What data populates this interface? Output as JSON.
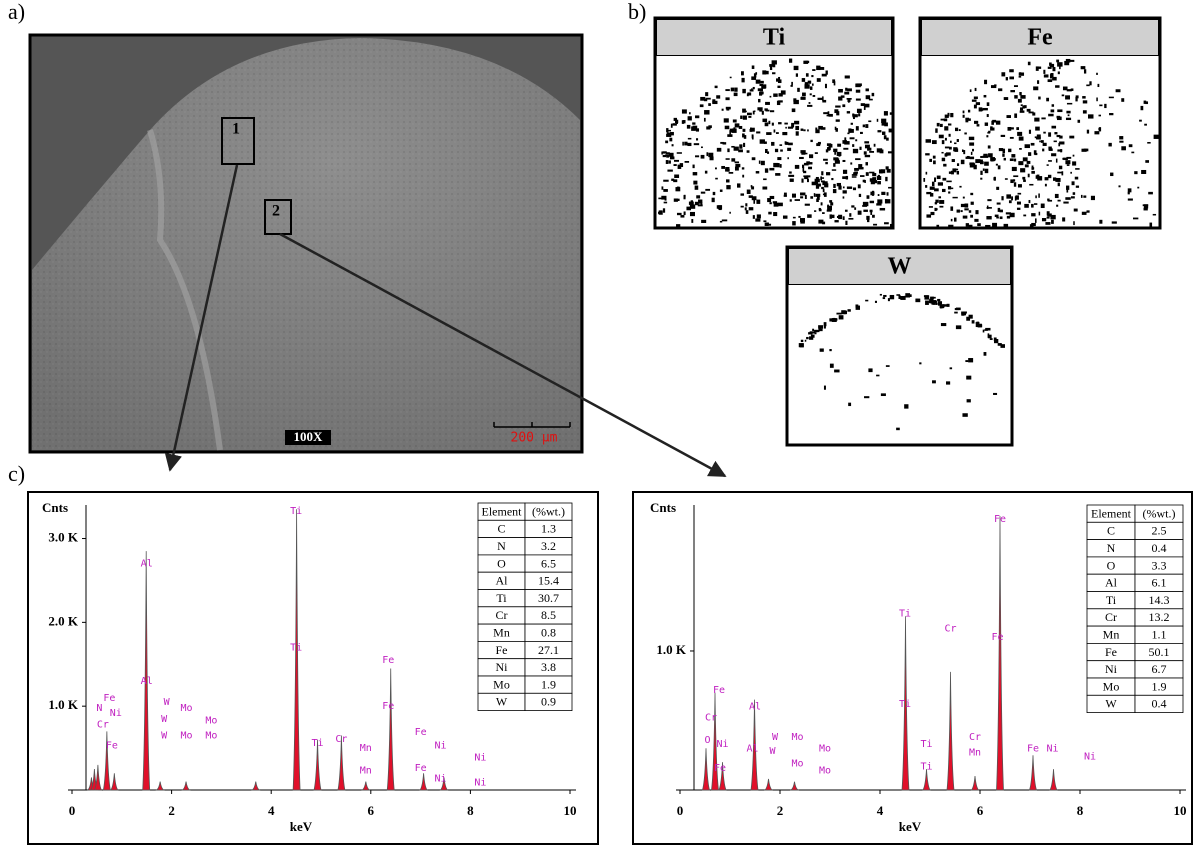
{
  "panels": {
    "a": "a)",
    "b": "b)",
    "c": "c)"
  },
  "sem": {
    "regions": [
      "1",
      "2"
    ],
    "magnification": "100X",
    "scale_bar": "200 µm"
  },
  "maps": [
    "Ti",
    "Fe",
    "W"
  ],
  "chart_data": [
    {
      "type": "spectrum",
      "y_label": "Cnts",
      "x_label": "keV",
      "color": "#e0102a",
      "xlim": [
        0,
        10
      ],
      "xticks": [
        0,
        2,
        4,
        6,
        8,
        10
      ],
      "ylim": [
        0,
        3400
      ],
      "yticks": [
        {
          "value": 1000,
          "label": "1.0 K"
        },
        {
          "value": 2000,
          "label": "2.0 K"
        },
        {
          "value": 3000,
          "label": "3.0 K"
        }
      ],
      "x": [
        0.39,
        0.45,
        0.52,
        0.7,
        0.85,
        1.49,
        1.77,
        2.29,
        3.69,
        4.51,
        4.93,
        5.41,
        5.9,
        6.4,
        7.06,
        7.47
      ],
      "values": [
        150,
        250,
        300,
        700,
        200,
        2850,
        100,
        100,
        100,
        3350,
        600,
        650,
        100,
        1450,
        200,
        150
      ],
      "peak_labels": [
        {
          "text": "Fe",
          "x": 0.75,
          "y": 1100
        },
        {
          "text": "N",
          "x": 0.55,
          "y": 980
        },
        {
          "text": "Ni",
          "x": 0.88,
          "y": 920
        },
        {
          "text": "Cr",
          "x": 0.62,
          "y": 780
        },
        {
          "text": "Fe",
          "x": 0.8,
          "y": 530
        },
        {
          "text": "Al",
          "x": 1.5,
          "y": 2700
        },
        {
          "text": "Al",
          "x": 1.5,
          "y": 1300
        },
        {
          "text": "W",
          "x": 1.9,
          "y": 1050
        },
        {
          "text": "W",
          "x": 1.85,
          "y": 850
        },
        {
          "text": "W",
          "x": 1.85,
          "y": 650
        },
        {
          "text": "Mo",
          "x": 2.3,
          "y": 980
        },
        {
          "text": "Mo",
          "x": 2.3,
          "y": 650
        },
        {
          "text": "Mo",
          "x": 2.8,
          "y": 830
        },
        {
          "text": "Mo",
          "x": 2.8,
          "y": 650
        },
        {
          "text": "Ti",
          "x": 4.5,
          "y": 3330
        },
        {
          "text": "Ti",
          "x": 4.5,
          "y": 1700
        },
        {
          "text": "Ti",
          "x": 4.93,
          "y": 560
        },
        {
          "text": "Cr",
          "x": 5.41,
          "y": 610
        },
        {
          "text": "Mn",
          "x": 5.9,
          "y": 500
        },
        {
          "text": "Mn",
          "x": 5.9,
          "y": 230
        },
        {
          "text": "Fe",
          "x": 6.35,
          "y": 1550
        },
        {
          "text": "Fe",
          "x": 6.35,
          "y": 1000
        },
        {
          "text": "Fe",
          "x": 7.0,
          "y": 690
        },
        {
          "text": "Fe",
          "x": 7.0,
          "y": 260
        },
        {
          "text": "Ni",
          "x": 7.4,
          "y": 530
        },
        {
          "text": "Ni",
          "x": 7.4,
          "y": 140
        },
        {
          "text": "Ni",
          "x": 8.2,
          "y": 390
        },
        {
          "text": "Ni",
          "x": 8.2,
          "y": 90
        }
      ],
      "table": {
        "header": [
          "Element",
          "(%wt.)"
        ],
        "rows": [
          [
            "C",
            1.3
          ],
          [
            "N",
            3.2
          ],
          [
            "O",
            6.5
          ],
          [
            "Al",
            15.4
          ],
          [
            "Ti",
            30.7
          ],
          [
            "Cr",
            8.5
          ],
          [
            "Mn",
            0.8
          ],
          [
            "Fe",
            27.1
          ],
          [
            "Ni",
            3.8
          ],
          [
            "Mo",
            1.9
          ],
          [
            "W",
            0.9
          ]
        ]
      }
    },
    {
      "type": "spectrum",
      "y_label": "Cnts",
      "x_label": "keV",
      "color": "#e0102a",
      "xlim": [
        0,
        10
      ],
      "xticks": [
        0,
        2,
        4,
        6,
        8,
        10
      ],
      "ylim": [
        0,
        2050
      ],
      "yticks": [
        {
          "value": 1000,
          "label": "1.0 K"
        }
      ],
      "x": [
        0.52,
        0.7,
        0.85,
        1.49,
        1.77,
        2.29,
        4.51,
        4.93,
        5.41,
        5.9,
        6.4,
        7.06,
        7.47
      ],
      "values": [
        300,
        700,
        200,
        650,
        80,
        60,
        1250,
        150,
        850,
        100,
        1970,
        250,
        150
      ],
      "peak_labels": [
        {
          "text": "Fe",
          "x": 0.78,
          "y": 720
        },
        {
          "text": "Cr",
          "x": 0.62,
          "y": 520
        },
        {
          "text": "O",
          "x": 0.55,
          "y": 360
        },
        {
          "text": "Ni",
          "x": 0.85,
          "y": 330
        },
        {
          "text": "Fe",
          "x": 0.8,
          "y": 160
        },
        {
          "text": "Al",
          "x": 1.5,
          "y": 600
        },
        {
          "text": "Al",
          "x": 1.45,
          "y": 300
        },
        {
          "text": "W",
          "x": 1.9,
          "y": 380
        },
        {
          "text": "W",
          "x": 1.85,
          "y": 280
        },
        {
          "text": "Mo",
          "x": 2.35,
          "y": 380
        },
        {
          "text": "Mo",
          "x": 2.35,
          "y": 190
        },
        {
          "text": "Mo",
          "x": 2.9,
          "y": 300
        },
        {
          "text": "Mo",
          "x": 2.9,
          "y": 140
        },
        {
          "text": "Ti",
          "x": 4.5,
          "y": 1270
        },
        {
          "text": "Ti",
          "x": 4.5,
          "y": 620
        },
        {
          "text": "Ti",
          "x": 4.93,
          "y": 330
        },
        {
          "text": "Ti",
          "x": 4.93,
          "y": 170
        },
        {
          "text": "Cr",
          "x": 5.41,
          "y": 1160
        },
        {
          "text": "Cr",
          "x": 5.9,
          "y": 380
        },
        {
          "text": "Mn",
          "x": 5.9,
          "y": 270
        },
        {
          "text": "Fe",
          "x": 6.4,
          "y": 1950
        },
        {
          "text": "Fe",
          "x": 6.35,
          "y": 1100
        },
        {
          "text": "Fe",
          "x": 7.06,
          "y": 300
        },
        {
          "text": "Ni",
          "x": 7.45,
          "y": 300
        },
        {
          "text": "Ni",
          "x": 8.2,
          "y": 240
        }
      ],
      "table": {
        "header": [
          "Element",
          "(%wt.)"
        ],
        "rows": [
          [
            "C",
            2.5
          ],
          [
            "N",
            0.4
          ],
          [
            "O",
            3.3
          ],
          [
            "Al",
            6.1
          ],
          [
            "Ti",
            14.3
          ],
          [
            "Cr",
            13.2
          ],
          [
            "Mn",
            1.1
          ],
          [
            "Fe",
            50.1
          ],
          [
            "Ni",
            6.7
          ],
          [
            "Mo",
            1.9
          ],
          [
            "W",
            0.4
          ]
        ]
      }
    }
  ]
}
